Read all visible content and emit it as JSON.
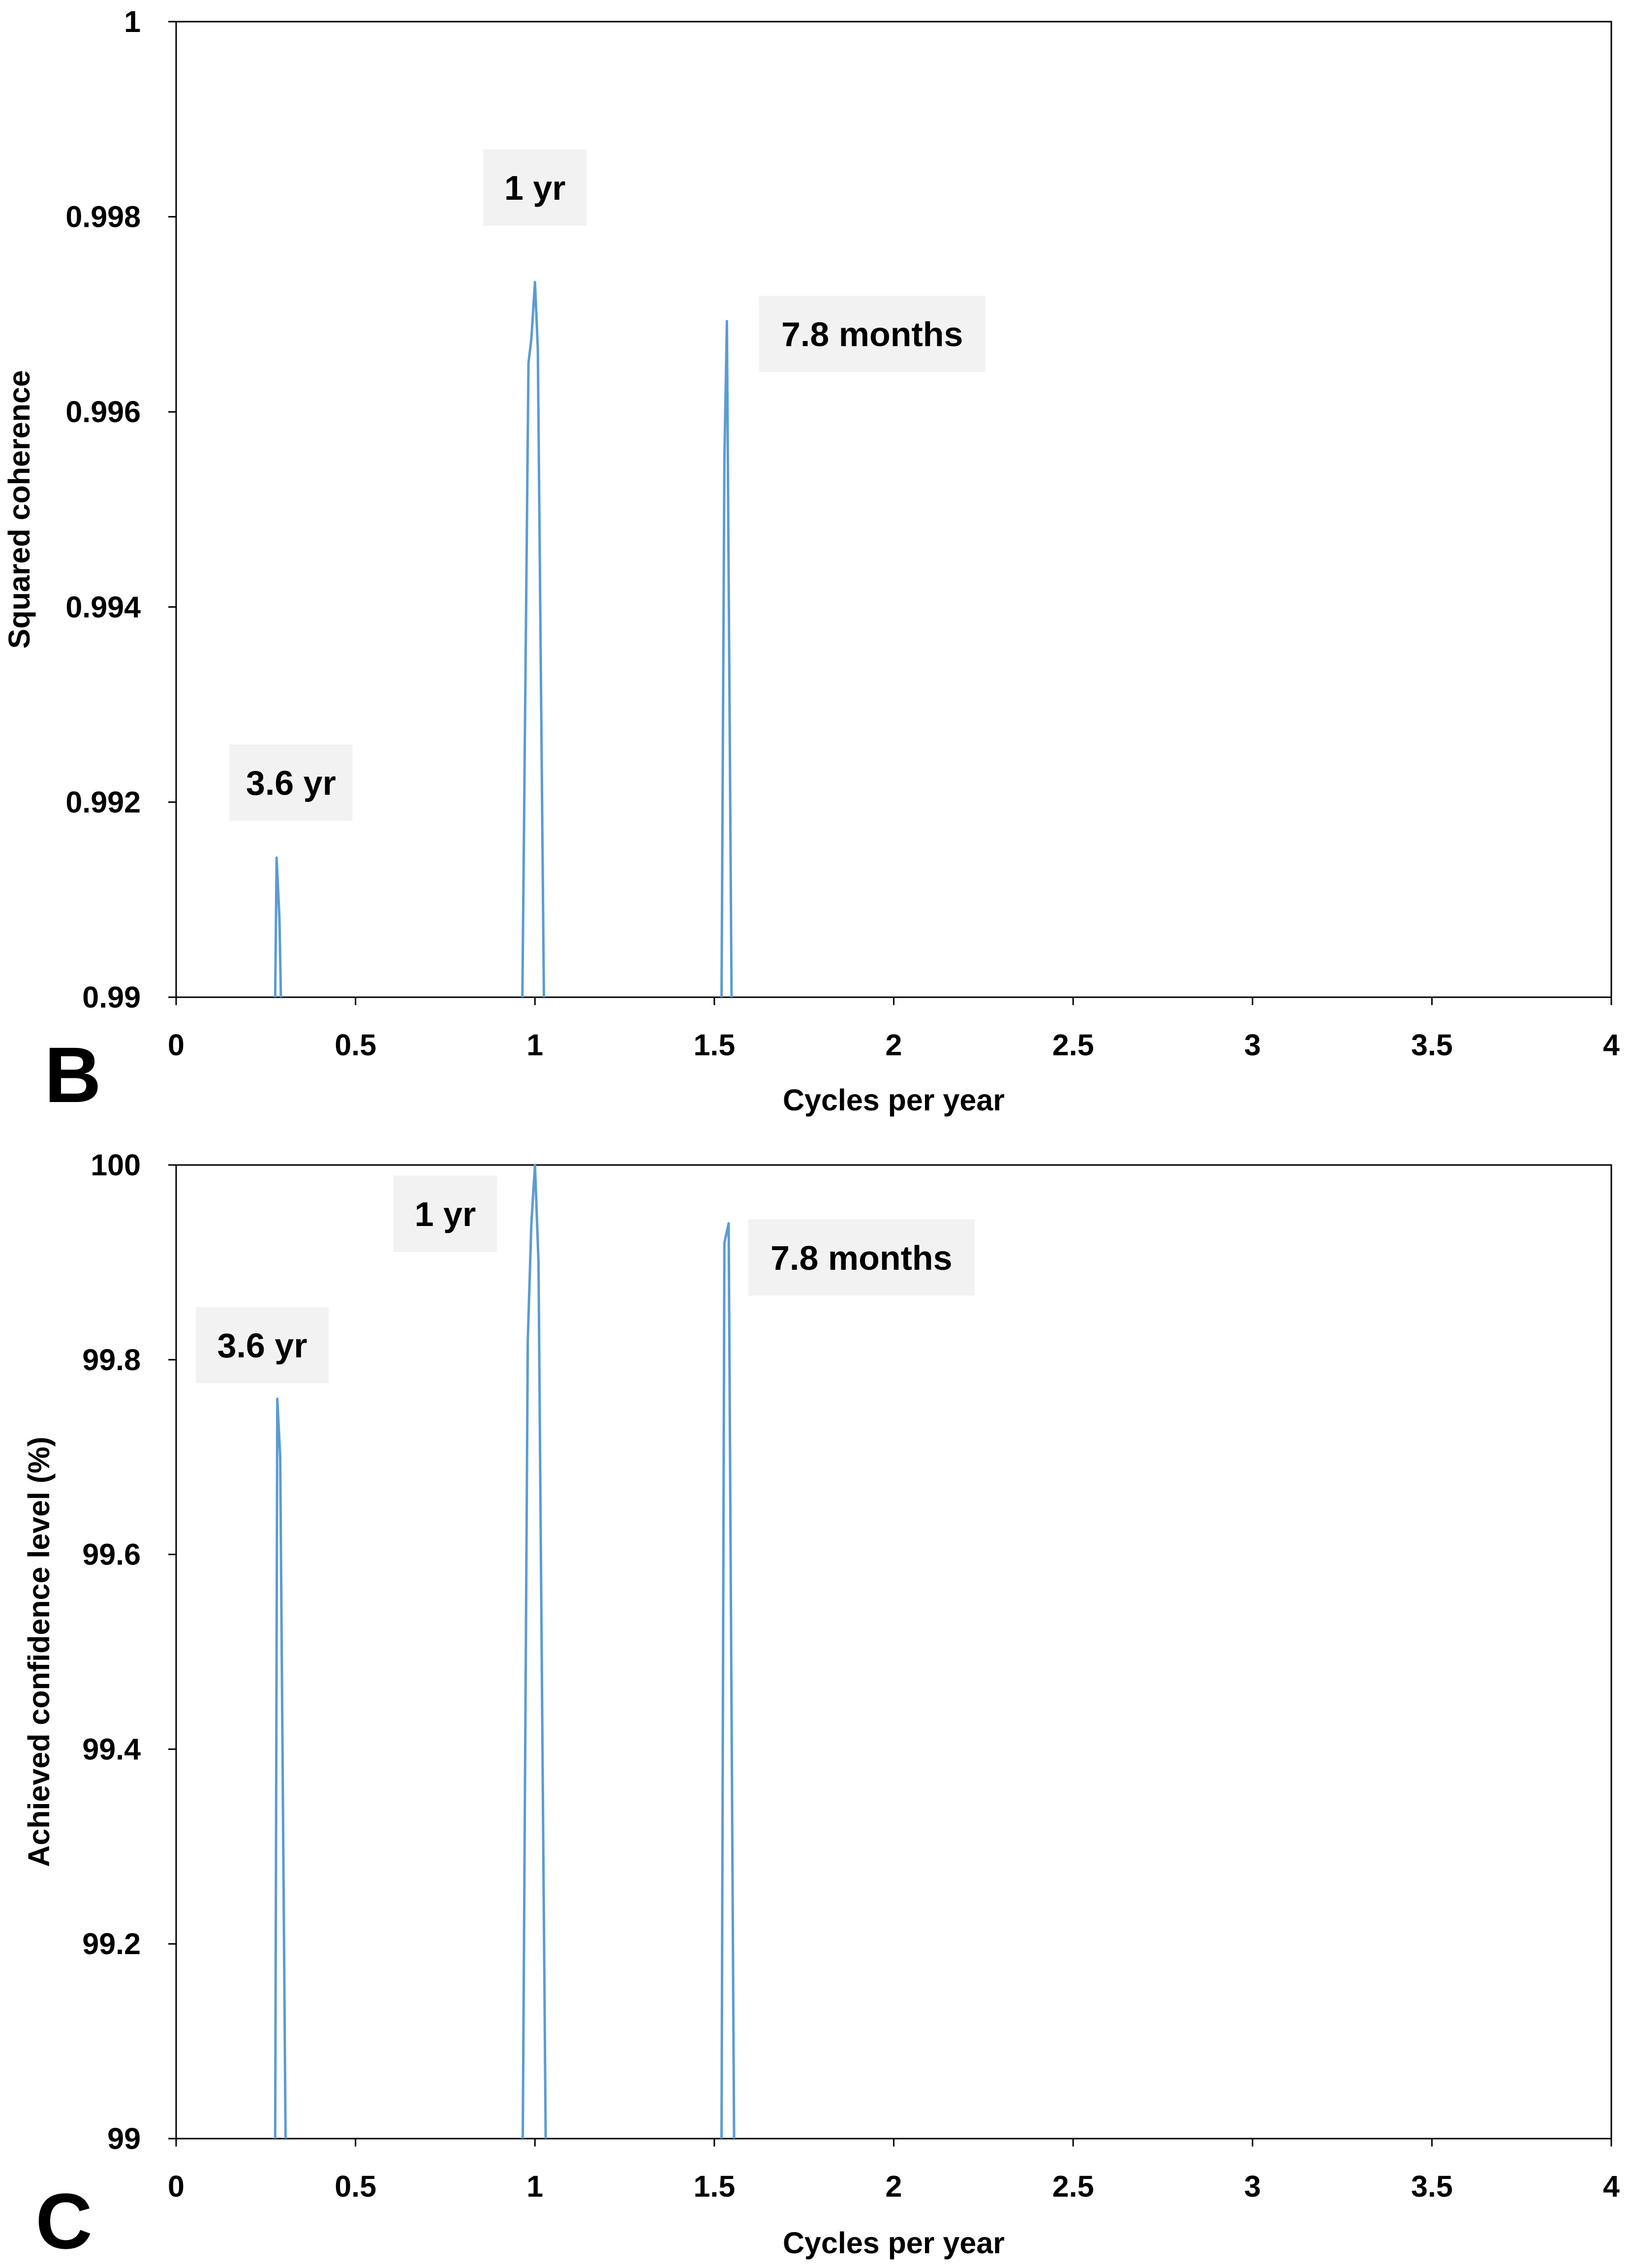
{
  "chart_data": [
    {
      "type": "line",
      "panel_label": "B",
      "title": "",
      "xlabel": "Cycles per year",
      "ylabel": "Squared coherence",
      "xlim": [
        0,
        4
      ],
      "ylim": [
        0.99,
        1
      ],
      "x_ticks": [
        "0",
        "0.5",
        "1",
        "1.5",
        "2",
        "2.5",
        "3",
        "3.5",
        "4"
      ],
      "y_ticks": [
        "0.99",
        "0.992",
        "0.994",
        "0.996",
        "0.998",
        "1"
      ],
      "grid": false,
      "series_color": "#5B9BD5",
      "series": [
        {
          "name": "peak 3.6 yr",
          "x": [
            0.276,
            0.28,
            0.288,
            0.292
          ],
          "y": [
            0.99,
            0.99143,
            0.9908,
            0.99
          ]
        },
        {
          "name": "peak 1 yr",
          "x": [
            0.965,
            0.982,
            0.99,
            1.0,
            1.008,
            1.025
          ],
          "y": [
            0.99,
            0.9965,
            0.99675,
            0.99733,
            0.99665,
            0.99
          ]
        },
        {
          "name": "peak 7.8 months",
          "x": [
            1.52,
            1.528,
            1.535,
            1.548
          ],
          "y": [
            0.99,
            0.9955,
            0.99693,
            0.99
          ]
        }
      ],
      "annotations": [
        {
          "text": "1 yr",
          "x": 1.0,
          "y": 0.9983
        },
        {
          "text": "7.8 months",
          "x": 1.94,
          "y": 0.9968
        },
        {
          "text": "3.6 yr",
          "x": 0.32,
          "y": 0.9922
        }
      ]
    },
    {
      "type": "line",
      "panel_label": "C",
      "title": "",
      "xlabel": "Cycles per year",
      "ylabel": "Achieved confidence level (%)",
      "xlim": [
        0,
        4
      ],
      "ylim": [
        99,
        100
      ],
      "x_ticks": [
        "0",
        "0.5",
        "1",
        "1.5",
        "2",
        "2.5",
        "3",
        "3.5",
        "4"
      ],
      "y_ticks": [
        "99",
        "99.2",
        "99.4",
        "99.6",
        "99.8",
        "100"
      ],
      "grid": false,
      "series_color": "#5B9BD5",
      "series": [
        {
          "name": "peak 3.6 yr",
          "x": [
            0.276,
            0.282,
            0.29,
            0.305
          ],
          "y": [
            99,
            99.76,
            99.7,
            99
          ]
        },
        {
          "name": "peak 1 yr",
          "x": [
            0.966,
            0.98,
            0.99,
            1.0,
            1.01,
            1.03
          ],
          "y": [
            99,
            99.82,
            99.94,
            100,
            99.9,
            99
          ]
        },
        {
          "name": "peak 7.8 months",
          "x": [
            1.52,
            1.528,
            1.54,
            1.555
          ],
          "y": [
            99,
            99.92,
            99.94,
            99
          ]
        }
      ],
      "annotations": [
        {
          "text": "1 yr",
          "x": 0.75,
          "y": 99.95
        },
        {
          "text": "7.8 months",
          "x": 1.91,
          "y": 99.905
        },
        {
          "text": "3.6 yr",
          "x": 0.24,
          "y": 99.815
        }
      ]
    }
  ]
}
